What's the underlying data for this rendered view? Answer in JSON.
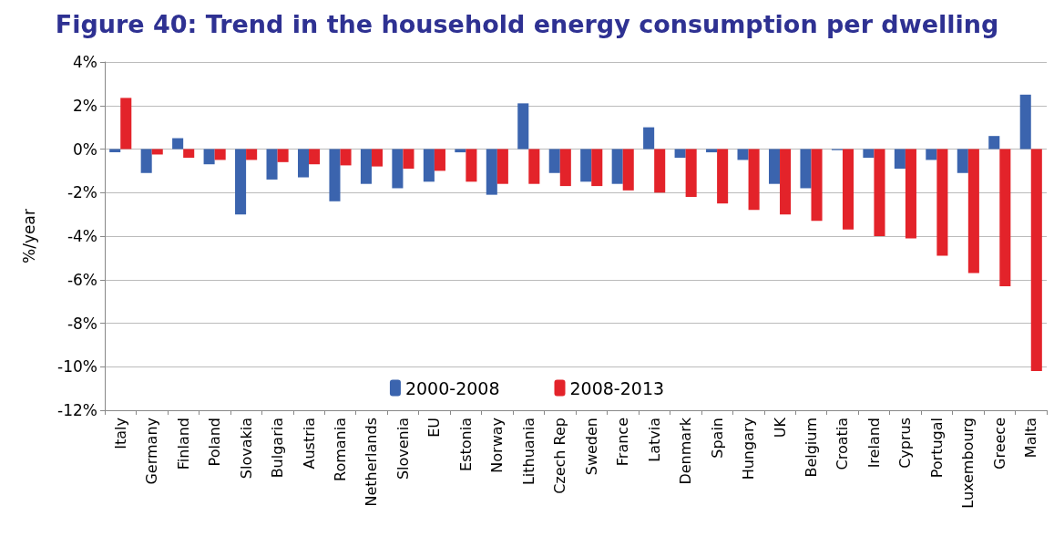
{
  "chart_data": {
    "type": "bar",
    "title": "Figure 40: Trend in the household energy consumption per dwelling",
    "ylabel": "%/year",
    "categories": [
      "Italy",
      "Germany",
      "Finland",
      "Poland",
      "Slovakia",
      "Bulgaria",
      "Austria",
      "Romania",
      "Netherlands",
      "Slovenia",
      "EU",
      "Estonia",
      "Norway",
      "Lithuania",
      "Czech Rep",
      "Sweden",
      "France",
      "Latvia",
      "Denmark",
      "Spain",
      "Hungary",
      "UK",
      "Belgium",
      "Croatia",
      "Ireland",
      "Cyprus",
      "Portugal",
      "Luxembourg",
      "Greece",
      "Malta"
    ],
    "series": [
      {
        "name": "2000-2008",
        "color": "#3b64ae",
        "values": [
          -0.15,
          -1.1,
          0.5,
          -0.7,
          -3.0,
          -1.4,
          -1.3,
          -2.4,
          -1.6,
          -1.8,
          -1.5,
          -0.15,
          -2.1,
          2.1,
          -1.1,
          -1.5,
          -1.6,
          1.0,
          -0.4,
          -0.15,
          -0.5,
          -1.6,
          -1.8,
          -0.05,
          -0.4,
          -0.9,
          -0.5,
          -1.1,
          0.6,
          2.5
        ]
      },
      {
        "name": "2008-2013",
        "color": "#e3232a",
        "values": [
          2.35,
          -0.25,
          -0.4,
          -0.5,
          -0.5,
          -0.6,
          -0.7,
          -0.75,
          -0.8,
          -0.9,
          -1.0,
          -1.5,
          -1.6,
          -1.6,
          -1.7,
          -1.7,
          -1.9,
          -2.0,
          -2.2,
          -2.5,
          -2.8,
          -3.0,
          -3.3,
          -3.7,
          -4.0,
          -4.1,
          -4.9,
          -5.7,
          -6.3,
          -10.2
        ]
      }
    ],
    "ylim": [
      -12,
      4
    ],
    "yticks": [
      {
        "value": -12,
        "label": "-12%"
      },
      {
        "value": -10,
        "label": "-10%"
      },
      {
        "value": -8,
        "label": "-8%"
      },
      {
        "value": -6,
        "label": "-6%"
      },
      {
        "value": -4,
        "label": "-4%"
      },
      {
        "value": -2,
        "label": "-2%"
      },
      {
        "value": 0,
        "label": "0%"
      },
      {
        "value": 2,
        "label": "2%"
      },
      {
        "value": 4,
        "label": "4%"
      }
    ],
    "grid": "y",
    "legend": "bottom"
  }
}
